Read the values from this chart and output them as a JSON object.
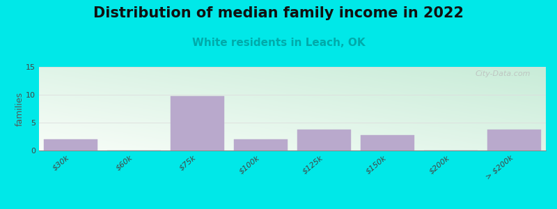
{
  "title": "Distribution of median family income in 2022",
  "subtitle": "White residents in Leach, OK",
  "categories": [
    "$30k",
    "$60k",
    "$75k",
    "$100k",
    "$125k",
    "$150k",
    "$200k",
    "> $200k"
  ],
  "values": [
    2,
    0,
    9.8,
    2,
    3.8,
    2.8,
    0,
    3.8
  ],
  "bar_color": "#b9a9cc",
  "bar_edgecolor": "#b9a9cc",
  "background_outer": "#00e8e8",
  "title_fontsize": 15,
  "subtitle_fontsize": 11,
  "subtitle_color": "#00aaaa",
  "ylabel": "families",
  "ylabel_fontsize": 9,
  "ylim": [
    0,
    15
  ],
  "yticks": [
    0,
    5,
    10,
    15
  ],
  "grid_color": "#dddddd",
  "watermark": "City-Data.com",
  "watermark_color": "#bbbbbb",
  "plot_bg_left_bottom": "#c8ecd8",
  "plot_bg_right_top": "#f8fdf8"
}
